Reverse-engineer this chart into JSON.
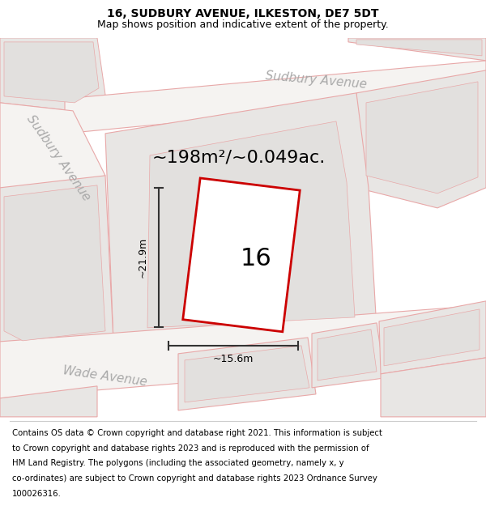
{
  "title": "16, SUDBURY AVENUE, ILKESTON, DE7 5DT",
  "subtitle": "Map shows position and indicative extent of the property.",
  "area_label": "~198m²/~0.049ac.",
  "width_label": "~15.6m",
  "height_label": "~21.9m",
  "number_label": "16",
  "footer_lines": [
    "Contains OS data © Crown copyright and database right 2021. This information is subject",
    "to Crown copyright and database rights 2023 and is reproduced with the permission of",
    "HM Land Registry. The polygons (including the associated geometry, namely x, y",
    "co-ordinates) are subject to Crown copyright and database rights 2023 Ordnance Survey",
    "100026316."
  ],
  "map_bg": "#f0eeec",
  "plot_outline_color": "#cc0000",
  "building_color": "#e2e0de",
  "parcel_color": "#e8e6e4",
  "road_surface_color": "#f5f3f1",
  "road_line_color": "#e8a8a8",
  "dim_line_color": "#333333",
  "road_label_color": "#aaaaaa",
  "title_fontsize": 10,
  "subtitle_fontsize": 9,
  "area_fontsize": 16,
  "number_fontsize": 22,
  "dim_fontsize": 9,
  "road_fontsize": 11,
  "footer_fontsize": 7.3
}
